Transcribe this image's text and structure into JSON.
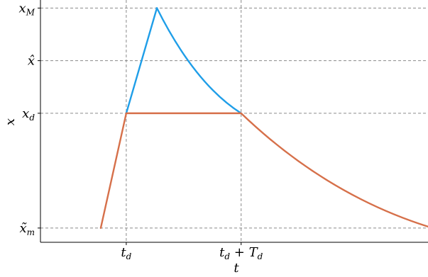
{
  "chart_data": {
    "type": "line",
    "xlabel": "t",
    "ylabel": "x",
    "grid": "dashed reference lines at marked ticks",
    "x_ticks": [
      {
        "id": "td",
        "base": "t",
        "sub": "d",
        "suffix": ""
      },
      {
        "id": "tdTd",
        "base": "t",
        "sub": "d",
        "suffix": " + T",
        "suffix_sub": "d"
      }
    ],
    "y_ticks": [
      {
        "id": "xM",
        "base": "x",
        "sub": "M",
        "accent": ""
      },
      {
        "id": "xhat",
        "base": "x",
        "sub": "",
        "accent": "̂"
      },
      {
        "id": "xd",
        "base": "x",
        "sub": "d",
        "accent": ""
      },
      {
        "id": "xm",
        "base": "x",
        "sub": "m",
        "accent": "̃"
      }
    ],
    "axis_positions": {
      "x": {
        "t_start": 0.2,
        "td": 0.3,
        "tdTd": 0.75,
        "t_end": 1.5,
        "t_min": 0.0,
        "t_max": 1.5
      },
      "y": {
        "xm": 1.0,
        "xd": 5.8,
        "xhat": 8.0,
        "xM": 10.2,
        "y_min": 0.7,
        "y_max": 10.3
      }
    },
    "series": [
      {
        "color": "#1f9ee8",
        "segments": [
          {
            "kind": "line",
            "points": [
              [
                0.3,
                5.8
              ],
              [
                0.42,
                10.2
              ]
            ]
          },
          {
            "kind": "curve",
            "from": [
              0.42,
              10.2
            ],
            "to": [
              0.75,
              5.8
            ],
            "shape": "decay"
          }
        ]
      },
      {
        "color": "#d6704a",
        "segments": [
          {
            "kind": "line",
            "points": [
              [
                0.2,
                1.0
              ],
              [
                0.3,
                5.8
              ],
              [
                0.75,
                5.8
              ]
            ]
          },
          {
            "kind": "curve",
            "from": [
              0.75,
              5.8
            ],
            "to": [
              1.5,
              1.0
            ],
            "shape": "decay"
          }
        ]
      }
    ],
    "reference_color": "#8a8a8a",
    "axis_color": "#000000"
  }
}
